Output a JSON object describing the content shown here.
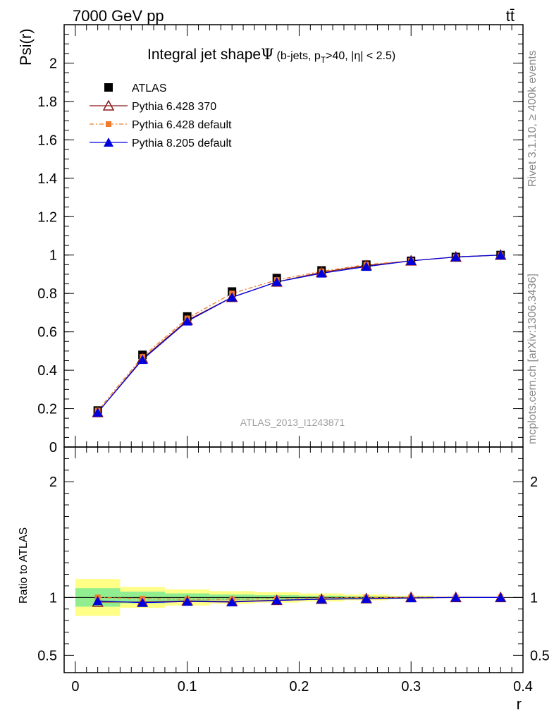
{
  "header": {
    "energy_label": "7000 GeV pp",
    "process_label": "tt̄"
  },
  "side": {
    "rivet_label": "Rivet 3.1.10, ≥ 400k events",
    "mcplots_label": "mcplots.cern.ch [arXiv:1306.3436]"
  },
  "chart_data": [
    {
      "type": "line",
      "title": "Integral jet shape",
      "title_symbol": "Ψ",
      "subtitle_prefix": "(b-jets, p",
      "subtitle_sub": "T",
      "subtitle_suffix": ">40, |η| < 2.5)",
      "ylabel": "Psi(r)",
      "xlabel": "r",
      "xlim": [
        -0.01,
        0.4
      ],
      "ylim": [
        0,
        2.2
      ],
      "yticks": [
        {
          "v": 0,
          "label": "0"
        },
        {
          "v": 0.2,
          "label": "0.2"
        },
        {
          "v": 0.4,
          "label": "0.4"
        },
        {
          "v": 0.6,
          "label": "0.6"
        },
        {
          "v": 0.8,
          "label": "0.8"
        },
        {
          "v": 1,
          "label": "1"
        },
        {
          "v": 1.2,
          "label": "1.2"
        },
        {
          "v": 1.4,
          "label": "1.4"
        },
        {
          "v": 1.6,
          "label": "1.6"
        },
        {
          "v": 1.8,
          "label": "1.8"
        },
        {
          "v": 2,
          "label": "2"
        }
      ],
      "watermark": "ATLAS_2013_I1243871",
      "x": [
        0.02,
        0.06,
        0.1,
        0.14,
        0.18,
        0.22,
        0.26,
        0.3,
        0.34,
        0.38
      ],
      "series": [
        {
          "name": "ATLAS",
          "color": "#000000",
          "marker": "square",
          "values": [
            0.19,
            0.48,
            0.68,
            0.81,
            0.88,
            0.92,
            0.95,
            0.97,
            0.99,
            1.0
          ]
        },
        {
          "name": "Pythia 6.428 370",
          "color": "#8b1a1a",
          "marker": "open-triangle",
          "values": [
            0.18,
            0.46,
            0.66,
            0.78,
            0.86,
            0.91,
            0.945,
            0.97,
            0.99,
            1.0
          ]
        },
        {
          "name": "Pythia 6.428 default",
          "color": "#f07a2a",
          "marker": "small-square",
          "dashed": true,
          "values": [
            0.19,
            0.47,
            0.67,
            0.8,
            0.87,
            0.915,
            0.95,
            0.97,
            0.99,
            1.0
          ]
        },
        {
          "name": "Pythia 8.205 default",
          "color": "#0000dd",
          "marker": "triangle",
          "values": [
            0.18,
            0.455,
            0.655,
            0.78,
            0.86,
            0.905,
            0.94,
            0.97,
            0.99,
            1.0
          ]
        }
      ]
    },
    {
      "type": "line",
      "ylabel": "Ratio to ATLAS",
      "xlabel": "r",
      "xlim": [
        -0.01,
        0.4
      ],
      "ylim": [
        0.35,
        2.3
      ],
      "yticks": [
        {
          "v": 0.5,
          "label": "0.5"
        },
        {
          "v": 1,
          "label": "1"
        },
        {
          "v": 2,
          "label": "2"
        }
      ],
      "xticks": [
        {
          "v": 0,
          "label": "0"
        },
        {
          "v": 0.1,
          "label": "0.1"
        },
        {
          "v": 0.2,
          "label": "0.2"
        },
        {
          "v": 0.3,
          "label": "0.3"
        },
        {
          "v": 0.4,
          "label": "0.4"
        }
      ],
      "x": [
        0.02,
        0.06,
        0.1,
        0.14,
        0.18,
        0.22,
        0.26,
        0.3,
        0.34,
        0.38
      ],
      "x_edges": [
        0.0,
        0.04,
        0.08,
        0.12,
        0.16,
        0.2,
        0.24,
        0.28,
        0.32,
        0.36,
        0.4
      ],
      "band_stat": {
        "color": "#90ee90",
        "lo": [
          0.92,
          0.95,
          0.965,
          0.975,
          0.98,
          0.985,
          0.99,
          0.993,
          0.996,
          0.999
        ],
        "hi": [
          1.08,
          1.05,
          1.035,
          1.025,
          1.02,
          1.015,
          1.01,
          1.007,
          1.004,
          1.001
        ]
      },
      "band_total": {
        "color": "#ffff88",
        "lo": [
          0.84,
          0.91,
          0.93,
          0.945,
          0.955,
          0.965,
          0.975,
          0.985,
          0.993,
          0.998
        ],
        "hi": [
          1.16,
          1.09,
          1.07,
          1.055,
          1.045,
          1.035,
          1.025,
          1.015,
          1.007,
          1.002
        ]
      },
      "series": [
        {
          "name": "Pythia 6.428 370",
          "color": "#8b1a1a",
          "marker": "open-triangle",
          "values": [
            0.96,
            0.96,
            0.97,
            0.965,
            0.975,
            0.985,
            0.99,
            1.0,
            1.0,
            1.0
          ]
        },
        {
          "name": "Pythia 6.428 default",
          "color": "#f07a2a",
          "marker": "small-square",
          "dashed": true,
          "values": [
            1.0,
            0.99,
            0.985,
            0.985,
            0.99,
            0.995,
            1.0,
            1.0,
            1.0,
            1.0
          ]
        },
        {
          "name": "Pythia 8.205 default",
          "color": "#0000dd",
          "marker": "triangle",
          "values": [
            0.97,
            0.955,
            0.965,
            0.96,
            0.975,
            0.985,
            0.99,
            0.995,
            1.0,
            1.0
          ]
        }
      ]
    }
  ]
}
